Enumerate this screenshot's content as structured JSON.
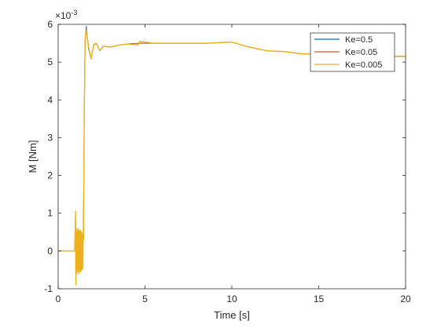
{
  "chart_data": {
    "type": "line",
    "xlabel": "Time [s]",
    "ylabel": "M [Nm]",
    "exponent_label": "×10",
    "exponent_power": "-3",
    "xlim": [
      0,
      20
    ],
    "ylim": [
      -1,
      6
    ],
    "y_scale": 0.001,
    "x_ticks": [
      "0",
      "5",
      "10",
      "15",
      "20"
    ],
    "y_ticks": [
      "-1",
      "0",
      "1",
      "2",
      "3",
      "4",
      "5",
      "6"
    ],
    "grid": false,
    "legend_position": "top-right",
    "series": [
      {
        "name": "Ke=0.5",
        "color": "#0072BD",
        "x": [
          0,
          1.0,
          1.45,
          1.5,
          1.55,
          1.62,
          1.75,
          1.9,
          2.05,
          2.2,
          2.4,
          2.6,
          3.0,
          3.5,
          4.0,
          4.7,
          5.5,
          7.0,
          8.5,
          10.0,
          10.8,
          11.5,
          12.0,
          13.0,
          14.0,
          15.0,
          16.0,
          17.0,
          18.0,
          19.0,
          20.0
        ],
        "y": [
          0,
          0,
          0.3,
          3.5,
          5.6,
          5.95,
          5.35,
          5.1,
          5.45,
          5.5,
          5.3,
          5.42,
          5.4,
          5.45,
          5.48,
          5.5,
          5.5,
          5.5,
          5.5,
          5.53,
          5.42,
          5.35,
          5.3,
          5.28,
          5.22,
          5.2,
          5.2,
          5.18,
          5.17,
          5.16,
          5.15
        ]
      },
      {
        "name": "Ke=0.05",
        "color": "#D95319",
        "x": [
          0,
          1.0,
          1.45,
          1.5,
          1.55,
          1.62,
          1.75,
          1.9,
          2.05,
          2.2,
          2.4,
          2.6,
          3.0,
          3.5,
          4.0,
          4.7,
          5.5,
          7.0,
          8.5,
          10.0,
          10.8,
          11.5,
          12.0,
          13.0,
          14.0,
          15.0,
          16.0,
          17.0,
          18.0,
          19.0,
          20.0
        ],
        "y": [
          0,
          0,
          0.3,
          3.5,
          5.6,
          5.9,
          5.4,
          5.08,
          5.47,
          5.5,
          5.3,
          5.42,
          5.4,
          5.45,
          5.48,
          5.5,
          5.5,
          5.5,
          5.5,
          5.53,
          5.42,
          5.35,
          5.3,
          5.28,
          5.22,
          5.2,
          5.2,
          5.18,
          5.17,
          5.16,
          5.15
        ]
      },
      {
        "name": "Ke=0.005",
        "color": "#EDB120",
        "x": [
          0,
          0.95,
          1.0,
          1.02,
          1.04,
          1.06,
          1.08,
          1.1,
          1.12,
          1.14,
          1.16,
          1.18,
          1.2,
          1.22,
          1.24,
          1.26,
          1.28,
          1.3,
          1.32,
          1.34,
          1.36,
          1.38,
          1.4,
          1.42,
          1.44,
          1.46,
          1.5,
          1.55,
          1.62,
          1.75,
          1.9,
          2.05,
          2.2,
          2.4,
          2.6,
          3.0,
          3.5,
          4.0,
          4.6,
          4.7,
          5.5,
          7.0,
          8.5,
          10.0,
          10.8,
          11.5,
          12.0,
          13.0,
          14.0,
          15.0,
          16.0,
          17.0,
          18.0,
          19.0,
          19.5,
          20.0
        ],
        "y": [
          0,
          0,
          1.05,
          -0.9,
          0.6,
          -0.6,
          0.5,
          -0.55,
          0.55,
          -0.5,
          0.6,
          -0.6,
          0.55,
          -0.55,
          0.5,
          -0.5,
          0.55,
          -0.55,
          0.5,
          -0.5,
          0.5,
          -0.5,
          0.45,
          -0.45,
          0.4,
          0.3,
          3.5,
          5.6,
          5.85,
          5.4,
          5.1,
          5.45,
          5.5,
          5.3,
          5.42,
          5.4,
          5.45,
          5.48,
          5.45,
          5.55,
          5.5,
          5.5,
          5.5,
          5.53,
          5.42,
          5.35,
          5.3,
          5.28,
          5.22,
          5.2,
          5.2,
          5.18,
          5.17,
          5.16,
          5.15,
          5.15
        ]
      }
    ]
  }
}
